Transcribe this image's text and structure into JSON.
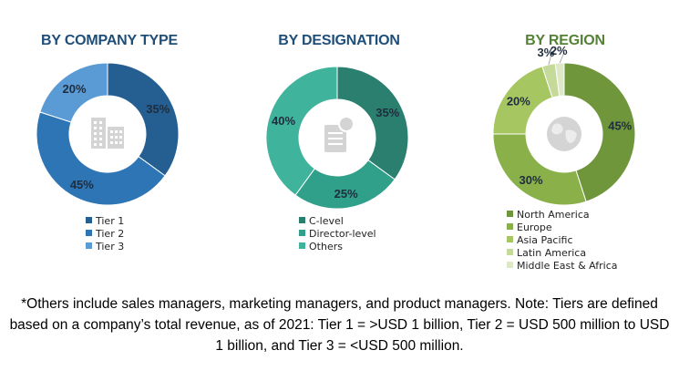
{
  "chart_data": [
    {
      "type": "pie",
      "title": "BY COMPANY TYPE",
      "title_color": "#1f4e79",
      "categories": [
        "Tier 1",
        "Tier 2",
        "Tier 3"
      ],
      "values": [
        35,
        45,
        20
      ],
      "labels": [
        "35%",
        "45%",
        "20%"
      ],
      "colors": [
        "#255e91",
        "#2e75b6",
        "#5b9bd5"
      ],
      "label_color": "#1f2d3d",
      "center_icon": "building-icon",
      "legend_position": "bottom"
    },
    {
      "type": "pie",
      "title": "BY DESIGNATION",
      "title_color": "#1f4e79",
      "categories": [
        "C-level",
        "Director-level",
        "Others"
      ],
      "values": [
        35,
        25,
        40
      ],
      "labels": [
        "35%",
        "25%",
        "40%"
      ],
      "colors": [
        "#2a7f6f",
        "#30a08a",
        "#3fb39b"
      ],
      "label_color": "#1f2d3d",
      "center_icon": "document-user-icon",
      "legend_position": "bottom"
    },
    {
      "type": "pie",
      "title": "BY REGION",
      "title_color": "#548235",
      "categories": [
        "North America",
        "Europe",
        "Asia Pacific",
        "Latin America",
        "Middle East & Africa"
      ],
      "values": [
        45,
        30,
        20,
        3,
        2
      ],
      "labels": [
        "45%",
        "30%",
        "20%",
        "3%",
        "2%"
      ],
      "colors": [
        "#70963c",
        "#8ab04a",
        "#a5c660",
        "#c5d99a",
        "#dde8c6"
      ],
      "label_color": "#1f2d3d",
      "center_icon": "globe-icon",
      "legend_position": "bottom"
    }
  ],
  "footnote": "*Others include sales managers, marketing managers, and product managers. Note: Tiers are defined based on a company’s total revenue, as of 2021: Tier 1 = >USD 1 billion, Tier 2 = USD 500 million to USD 1 billion, and Tier 3 = <USD 500 million."
}
